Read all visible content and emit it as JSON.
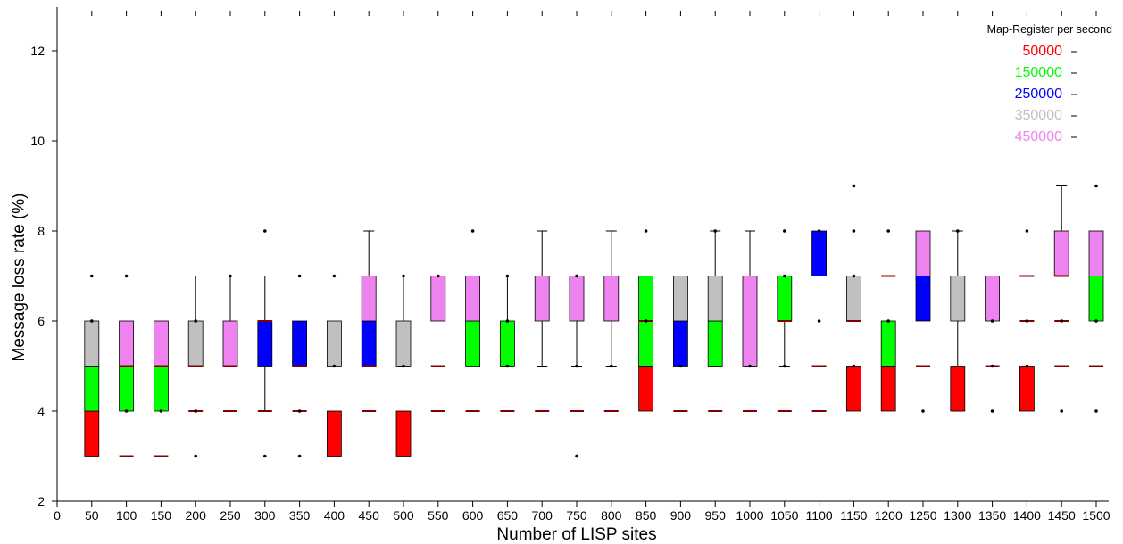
{
  "chart_data": {
    "type": "boxplot",
    "title": "",
    "xlabel": "Number of LISP sites",
    "ylabel": "Message loss rate (%)",
    "xlim": [
      0,
      1500
    ],
    "ylim": [
      2,
      13
    ],
    "x_ticks": [
      0,
      50,
      100,
      150,
      200,
      250,
      300,
      350,
      400,
      450,
      500,
      550,
      600,
      650,
      700,
      750,
      800,
      850,
      900,
      950,
      1000,
      1050,
      1100,
      1150,
      1200,
      1250,
      1300,
      1350,
      1400,
      1450,
      1500
    ],
    "y_ticks": [
      2,
      4,
      6,
      8,
      10,
      12
    ],
    "grid": false,
    "legend": {
      "title": "Map-Register per second",
      "position": "top-right",
      "entries": [
        {
          "label": "50000",
          "color": "#ff0000"
        },
        {
          "label": "150000",
          "color": "#00ff00"
        },
        {
          "label": "250000",
          "color": "#0000ff"
        },
        {
          "label": "350000",
          "color": "#c0c0c0"
        },
        {
          "label": "450000",
          "color": "#ee82ee"
        }
      ]
    },
    "colors": {
      "50000": "#ff0000",
      "150000": "#00ff00",
      "250000": "#0000ff",
      "350000": "#c0c0c0",
      "450000": "#ee82ee",
      "median": "#800000"
    },
    "boxes": [
      {
        "x": 50,
        "parts": [
          [
            3,
            4,
            "50000"
          ],
          [
            4,
            5,
            "150000"
          ],
          [
            5,
            6,
            "350000"
          ]
        ],
        "whisker": null,
        "outliers": [
          6,
          7
        ]
      },
      {
        "x": 100,
        "parts": [
          [
            4,
            5,
            "150000"
          ],
          [
            5,
            6,
            "450000"
          ]
        ],
        "whisker": null,
        "outliers": [
          4,
          7
        ],
        "medians": [
          3,
          5
        ]
      },
      {
        "x": 150,
        "parts": [
          [
            4,
            5,
            "150000"
          ],
          [
            5,
            6,
            "450000"
          ]
        ],
        "whisker": null,
        "outliers": [
          4
        ],
        "medians": [
          3,
          5
        ]
      },
      {
        "x": 200,
        "parts": [
          [
            5,
            6,
            "350000"
          ]
        ],
        "whisker": [
          5,
          7
        ],
        "outliers": [
          4,
          3,
          6
        ],
        "medians": [
          4,
          5
        ]
      },
      {
        "x": 250,
        "parts": [
          [
            5,
            6,
            "450000"
          ]
        ],
        "whisker": [
          5,
          7
        ],
        "outliers": [
          7
        ],
        "medians": [
          4,
          5
        ]
      },
      {
        "x": 300,
        "parts": [
          [
            5,
            6,
            "250000"
          ]
        ],
        "whisker": [
          4,
          7
        ],
        "outliers": [
          8,
          3
        ],
        "medians": [
          4,
          6
        ]
      },
      {
        "x": 350,
        "parts": [
          [
            5,
            6,
            "250000"
          ]
        ],
        "whisker": null,
        "outliers": [
          7,
          4,
          3
        ],
        "medians": [
          4,
          5
        ]
      },
      {
        "x": 400,
        "parts": [
          [
            3,
            4,
            "50000"
          ],
          [
            5,
            6,
            "350000"
          ]
        ],
        "whisker": null,
        "outliers": [
          7,
          5
        ]
      },
      {
        "x": 450,
        "parts": [
          [
            5,
            6,
            "250000"
          ],
          [
            6,
            7,
            "450000"
          ]
        ],
        "whisker": [
          5,
          8
        ],
        "outliers": [],
        "medians": [
          4,
          5
        ]
      },
      {
        "x": 500,
        "parts": [
          [
            3,
            4,
            "50000"
          ],
          [
            5,
            6,
            "350000"
          ]
        ],
        "whisker": [
          5,
          7
        ],
        "outliers": [
          7,
          5
        ]
      },
      {
        "x": 550,
        "parts": [
          [
            6,
            7,
            "450000"
          ]
        ],
        "whisker": null,
        "outliers": [
          7
        ],
        "medians": [
          4,
          5
        ]
      },
      {
        "x": 600,
        "parts": [
          [
            5,
            6,
            "150000"
          ],
          [
            6,
            7,
            "450000"
          ]
        ],
        "whisker": null,
        "outliers": [
          8
        ],
        "medians": [
          4
        ]
      },
      {
        "x": 650,
        "parts": [
          [
            5,
            6,
            "150000"
          ]
        ],
        "whisker": [
          5,
          7
        ],
        "outliers": [
          7,
          6,
          5
        ],
        "medians": [
          4
        ]
      },
      {
        "x": 700,
        "parts": [
          [
            6,
            7,
            "450000"
          ]
        ],
        "whisker": [
          5,
          8
        ],
        "outliers": [],
        "medians": [
          4
        ]
      },
      {
        "x": 750,
        "parts": [
          [
            6,
            7,
            "450000"
          ]
        ],
        "whisker": [
          5,
          7
        ],
        "outliers": [
          7,
          5,
          3
        ],
        "medians": [
          4
        ]
      },
      {
        "x": 800,
        "parts": [
          [
            6,
            7,
            "450000"
          ]
        ],
        "whisker": [
          5,
          8
        ],
        "outliers": [
          5
        ],
        "medians": [
          4
        ]
      },
      {
        "x": 850,
        "parts": [
          [
            4,
            5,
            "50000"
          ],
          [
            5,
            7,
            "150000"
          ]
        ],
        "whisker": null,
        "outliers": [
          8,
          6
        ],
        "medians": [
          6
        ]
      },
      {
        "x": 900,
        "parts": [
          [
            5,
            6,
            "250000"
          ],
          [
            6,
            7,
            "350000"
          ]
        ],
        "whisker": null,
        "outliers": [
          5
        ],
        "medians": [
          4
        ]
      },
      {
        "x": 950,
        "parts": [
          [
            5,
            6,
            "150000"
          ],
          [
            6,
            7,
            "350000"
          ]
        ],
        "whisker": [
          5,
          8
        ],
        "outliers": [
          8
        ],
        "medians": [
          4
        ]
      },
      {
        "x": 1000,
        "parts": [
          [
            5,
            7,
            "450000"
          ]
        ],
        "whisker": [
          5,
          8
        ],
        "outliers": [
          5
        ],
        "medians": [
          4
        ]
      },
      {
        "x": 1050,
        "parts": [
          [
            6,
            7,
            "150000"
          ]
        ],
        "whisker": [
          5,
          7
        ],
        "outliers": [
          8,
          7,
          5
        ],
        "medians": [
          4,
          6
        ]
      },
      {
        "x": 1100,
        "parts": [
          [
            7,
            8,
            "250000"
          ]
        ],
        "whisker": null,
        "outliers": [
          8,
          6
        ],
        "medians": [
          4,
          5
        ]
      },
      {
        "x": 1150,
        "parts": [
          [
            4,
            5,
            "50000"
          ],
          [
            6,
            7,
            "350000"
          ]
        ],
        "whisker": null,
        "outliers": [
          9,
          8,
          7,
          5
        ],
        "medians": [
          6
        ]
      },
      {
        "x": 1200,
        "parts": [
          [
            4,
            5,
            "50000"
          ],
          [
            5,
            6,
            "150000"
          ]
        ],
        "whisker": null,
        "outliers": [
          8,
          6
        ],
        "medians": [
          7
        ]
      },
      {
        "x": 1250,
        "parts": [
          [
            6,
            7,
            "250000"
          ],
          [
            7,
            8,
            "450000"
          ]
        ],
        "whisker": null,
        "outliers": [
          4
        ],
        "medians": [
          5
        ]
      },
      {
        "x": 1300,
        "parts": [
          [
            4,
            5,
            "50000"
          ],
          [
            6,
            7,
            "350000"
          ]
        ],
        "whisker": [
          4,
          8
        ],
        "outliers": [
          8
        ]
      },
      {
        "x": 1350,
        "parts": [
          [
            6,
            7,
            "450000"
          ]
        ],
        "whisker": null,
        "outliers": [
          4,
          5,
          6
        ],
        "medians": [
          5
        ]
      },
      {
        "x": 1400,
        "parts": [
          [
            4,
            5,
            "50000"
          ]
        ],
        "whisker": null,
        "outliers": [
          8,
          6,
          5
        ],
        "medians": [
          6,
          7
        ]
      },
      {
        "x": 1450,
        "parts": [
          [
            7,
            8,
            "450000"
          ]
        ],
        "whisker": [
          7,
          9
        ],
        "outliers": [
          6,
          4
        ],
        "medians": [
          5,
          6,
          7
        ]
      },
      {
        "x": 1500,
        "parts": [
          [
            6,
            7,
            "150000"
          ],
          [
            7,
            8,
            "450000"
          ]
        ],
        "whisker": null,
        "outliers": [
          9,
          6,
          4
        ],
        "medians": [
          5
        ]
      }
    ]
  }
}
